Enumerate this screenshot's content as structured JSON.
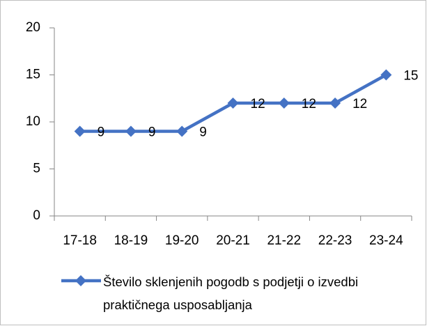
{
  "chart_data": {
    "type": "line",
    "categories": [
      "17-18",
      "18-19",
      "19-20",
      "20-21",
      "21-22",
      "22-23",
      "23-24"
    ],
    "series": [
      {
        "name": "Število sklenjenih pogodb s podjetji o izvedbi praktičnega usposabljanja",
        "color": "#4472c4",
        "values": [
          9,
          9,
          9,
          12,
          12,
          12,
          15
        ]
      }
    ],
    "ylim": [
      0,
      20
    ],
    "yticks": [
      0,
      5,
      10,
      15,
      20
    ],
    "grid": false,
    "legend": "bottom",
    "data_labels": true
  }
}
